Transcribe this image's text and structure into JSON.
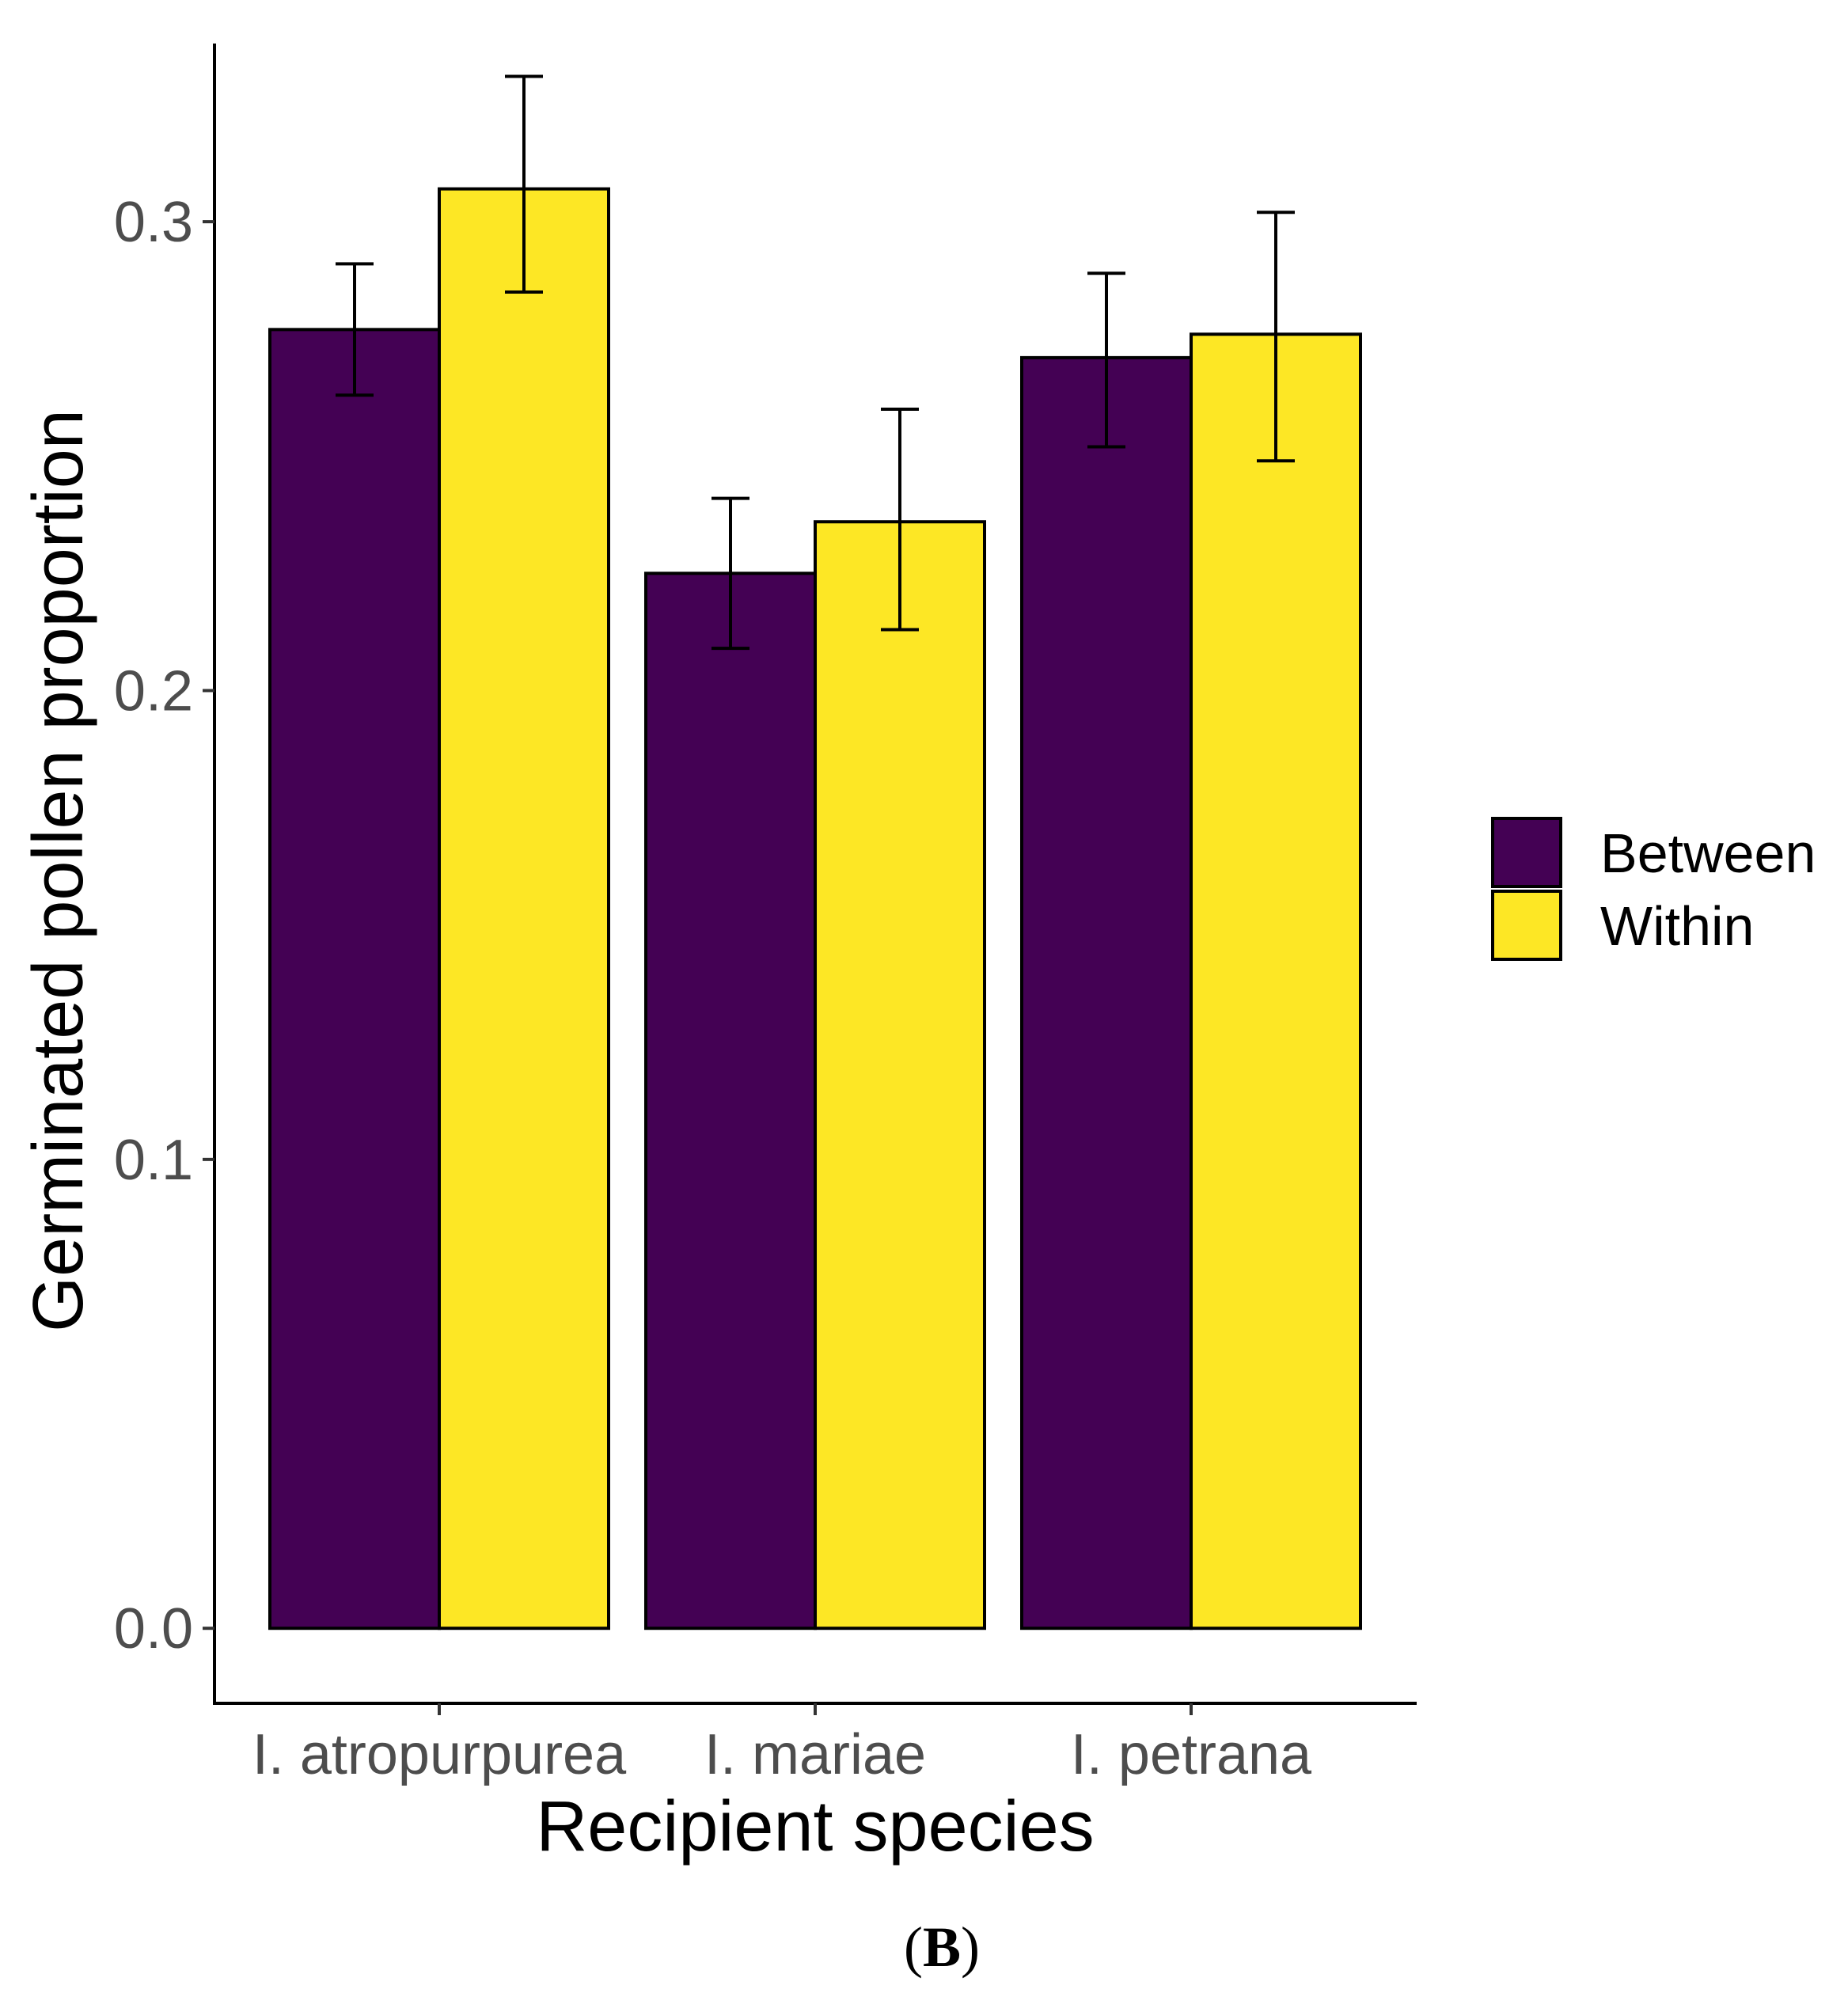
{
  "chart_data": {
    "type": "bar",
    "title": "",
    "xlabel": "Recipient species",
    "ylabel": "Germinated pollen proportion",
    "panel_label": {
      "open": "(",
      "letter": "B",
      "close": ")"
    },
    "categories": [
      "I. atropurpurea",
      "I. mariae",
      "I. petrana"
    ],
    "series": [
      {
        "name": "Between",
        "color": "#440154",
        "values": [
          0.277,
          0.225,
          0.271
        ],
        "error_low": [
          0.263,
          0.209,
          0.252
        ],
        "error_high": [
          0.291,
          0.241,
          0.289
        ]
      },
      {
        "name": "Within",
        "color": "#FDE725",
        "values": [
          0.307,
          0.236,
          0.276
        ],
        "error_low": [
          0.285,
          0.213,
          0.249
        ],
        "error_high": [
          0.331,
          0.26,
          0.302
        ]
      }
    ],
    "yticks": [
      "0.0",
      "0.1",
      "0.2",
      "0.3"
    ],
    "ylim": [
      -0.016,
      0.338
    ],
    "grid": false,
    "legend_position": "right"
  }
}
